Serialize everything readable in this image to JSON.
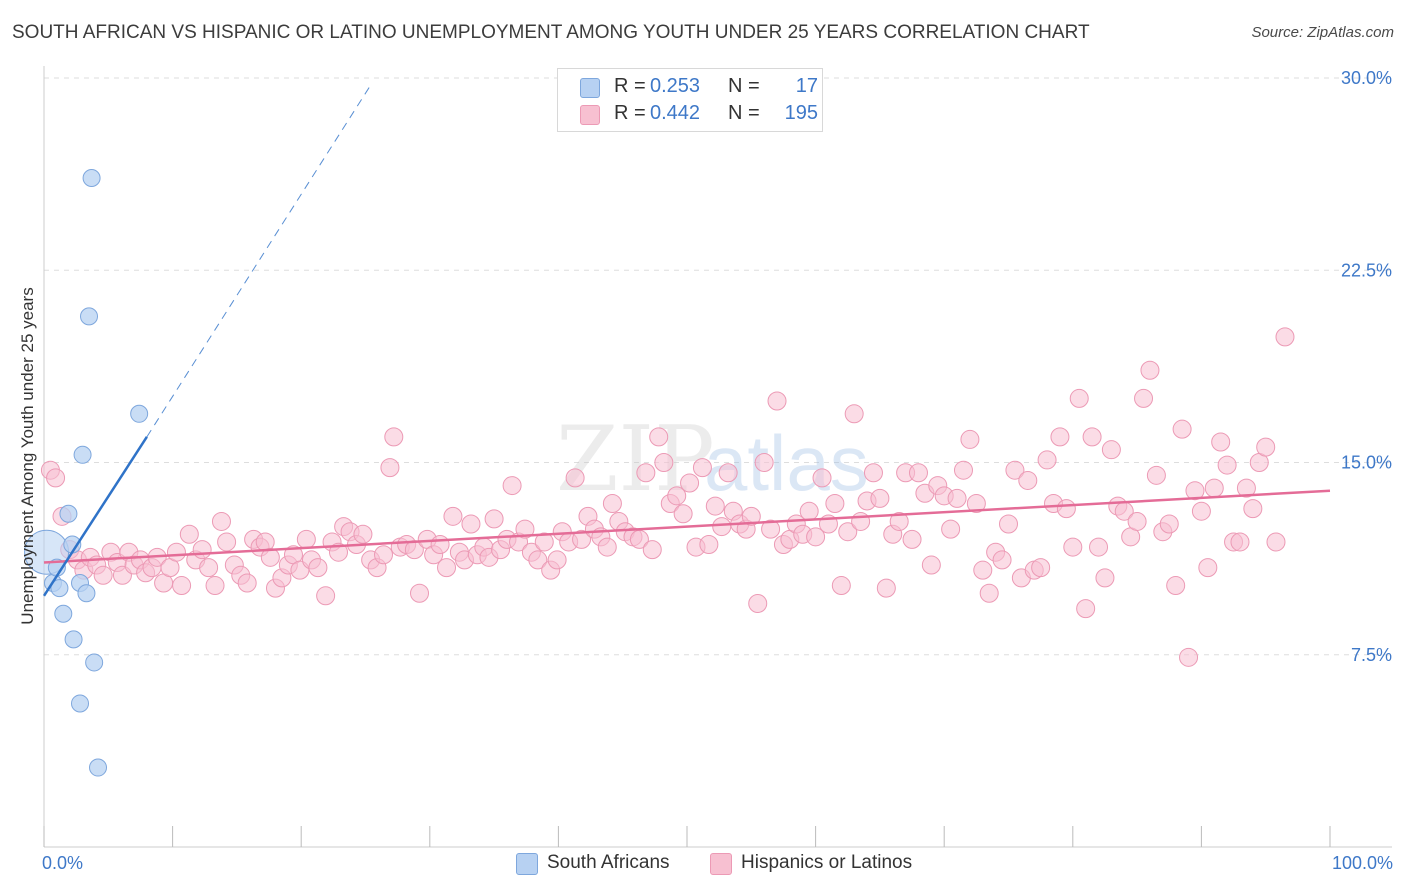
{
  "title": "SOUTH AFRICAN VS HISPANIC OR LATINO UNEMPLOYMENT AMONG YOUTH UNDER 25 YEARS CORRELATION CHART",
  "source": "Source: ZipAtlas.com",
  "watermark": {
    "zip": "ZIP",
    "atlas": "atlas"
  },
  "legend": {
    "rows": [
      {
        "r_label": "R =",
        "r_value": "0.253",
        "n_label": "N =",
        "n_value": "17"
      },
      {
        "r_label": "R =",
        "r_value": "0.442",
        "n_label": "N =",
        "n_value": "195"
      }
    ]
  },
  "bottom_legend": [
    "South Africans",
    "Hispanics or Latinos"
  ],
  "colors": {
    "blue_fill": "#b7d1f2",
    "blue_stroke": "#7ea7dd",
    "blue_line": "#2f73c8",
    "pink_fill": "#f7c0d1",
    "pink_stroke": "#ec9ab5",
    "pink_line": "#e46c97",
    "tick_text": "#3e78c8",
    "grid": "#dddddd"
  },
  "chart_data": {
    "type": "scatter",
    "title": "SOUTH AFRICAN VS HISPANIC OR LATINO UNEMPLOYMENT AMONG YOUTH UNDER 25 YEARS CORRELATION CHART",
    "xlabel": "",
    "ylabel": "Unemployment Among Youth under 25 years",
    "xlim": [
      0,
      100
    ],
    "ylim": [
      0,
      30
    ],
    "x_ticks": [
      "0.0%",
      "100.0%"
    ],
    "y_ticks": [
      {
        "value": 7.5,
        "label": "7.5%"
      },
      {
        "value": 15,
        "label": "15.0%"
      },
      {
        "value": 22.5,
        "label": "22.5%"
      },
      {
        "value": 30,
        "label": "30.0%"
      }
    ],
    "series": [
      {
        "name": "South Africans",
        "R": 0.253,
        "N": 17,
        "points": [
          [
            0.2,
            11.5
          ],
          [
            0.7,
            10.3
          ],
          [
            1.0,
            10.9
          ],
          [
            1.2,
            10.1
          ],
          [
            1.5,
            9.1
          ],
          [
            1.9,
            13.0
          ],
          [
            2.2,
            11.8
          ],
          [
            2.3,
            8.1
          ],
          [
            2.8,
            10.3
          ],
          [
            3.0,
            15.3
          ],
          [
            3.3,
            9.9
          ],
          [
            3.5,
            20.7
          ],
          [
            3.7,
            26.1
          ],
          [
            3.9,
            7.2
          ],
          [
            4.2,
            3.1
          ],
          [
            2.8,
            5.6
          ],
          [
            7.4,
            16.9
          ]
        ],
        "trend_solid": [
          [
            0,
            9.8
          ],
          [
            8.0,
            16.0
          ]
        ],
        "trend_dashed": [
          [
            8.0,
            16.0
          ],
          [
            25.5,
            29.8
          ]
        ]
      },
      {
        "name": "Hispanics or Latinos",
        "R": 0.442,
        "N": 195,
        "trend": [
          [
            0,
            11.1
          ],
          [
            100,
            13.9
          ]
        ],
        "points": [
          [
            0.5,
            14.7
          ],
          [
            0.9,
            14.4
          ],
          [
            1.4,
            12.9
          ],
          [
            2.0,
            11.6
          ],
          [
            2.6,
            11.2
          ],
          [
            3.1,
            10.8
          ],
          [
            3.6,
            11.3
          ],
          [
            4.1,
            11.0
          ],
          [
            4.6,
            10.6
          ],
          [
            5.2,
            11.5
          ],
          [
            5.7,
            11.1
          ],
          [
            6.1,
            10.6
          ],
          [
            6.6,
            11.5
          ],
          [
            7.0,
            11.0
          ],
          [
            7.5,
            11.2
          ],
          [
            7.9,
            10.7
          ],
          [
            8.4,
            10.9
          ],
          [
            8.8,
            11.3
          ],
          [
            9.3,
            10.3
          ],
          [
            9.8,
            10.9
          ],
          [
            10.3,
            11.5
          ],
          [
            10.7,
            10.2
          ],
          [
            11.3,
            12.2
          ],
          [
            11.8,
            11.2
          ],
          [
            12.3,
            11.6
          ],
          [
            12.8,
            10.9
          ],
          [
            13.3,
            10.2
          ],
          [
            13.8,
            12.7
          ],
          [
            14.2,
            11.9
          ],
          [
            14.8,
            11.0
          ],
          [
            15.3,
            10.6
          ],
          [
            15.8,
            10.3
          ],
          [
            16.3,
            12.0
          ],
          [
            16.8,
            11.7
          ],
          [
            17.2,
            11.9
          ],
          [
            17.6,
            11.3
          ],
          [
            18.0,
            10.1
          ],
          [
            18.5,
            10.5
          ],
          [
            19.0,
            11.0
          ],
          [
            19.4,
            11.4
          ],
          [
            19.9,
            10.8
          ],
          [
            20.4,
            12.0
          ],
          [
            20.8,
            11.2
          ],
          [
            21.3,
            10.9
          ],
          [
            21.9,
            9.8
          ],
          [
            22.4,
            11.9
          ],
          [
            22.9,
            11.5
          ],
          [
            23.3,
            12.5
          ],
          [
            23.8,
            12.3
          ],
          [
            24.3,
            11.8
          ],
          [
            24.8,
            12.2
          ],
          [
            25.4,
            11.2
          ],
          [
            25.9,
            10.9
          ],
          [
            26.4,
            11.4
          ],
          [
            26.9,
            14.8
          ],
          [
            27.2,
            16.0
          ],
          [
            27.7,
            11.7
          ],
          [
            28.2,
            11.8
          ],
          [
            28.8,
            11.6
          ],
          [
            29.2,
            9.9
          ],
          [
            29.8,
            12.0
          ],
          [
            30.3,
            11.4
          ],
          [
            30.8,
            11.8
          ],
          [
            31.3,
            10.9
          ],
          [
            31.8,
            12.9
          ],
          [
            32.3,
            11.5
          ],
          [
            32.7,
            11.2
          ],
          [
            33.2,
            12.6
          ],
          [
            33.7,
            11.4
          ],
          [
            34.2,
            11.7
          ],
          [
            34.6,
            11.3
          ],
          [
            35.0,
            12.8
          ],
          [
            35.5,
            11.6
          ],
          [
            36.0,
            12.0
          ],
          [
            36.4,
            14.1
          ],
          [
            36.9,
            11.9
          ],
          [
            37.4,
            12.4
          ],
          [
            37.9,
            11.5
          ],
          [
            38.4,
            11.2
          ],
          [
            38.9,
            11.9
          ],
          [
            39.4,
            10.8
          ],
          [
            39.9,
            11.2
          ],
          [
            40.3,
            12.3
          ],
          [
            40.8,
            11.9
          ],
          [
            41.3,
            14.4
          ],
          [
            41.8,
            12.0
          ],
          [
            42.3,
            12.9
          ],
          [
            42.8,
            12.4
          ],
          [
            43.3,
            12.1
          ],
          [
            43.8,
            11.7
          ],
          [
            44.2,
            13.4
          ],
          [
            44.7,
            12.7
          ],
          [
            45.2,
            12.3
          ],
          [
            45.8,
            12.1
          ],
          [
            46.3,
            12.0
          ],
          [
            46.8,
            14.6
          ],
          [
            47.3,
            11.6
          ],
          [
            47.8,
            16.0
          ],
          [
            48.2,
            15.0
          ],
          [
            48.7,
            13.4
          ],
          [
            49.2,
            13.7
          ],
          [
            49.7,
            13.0
          ],
          [
            50.2,
            14.2
          ],
          [
            50.7,
            11.7
          ],
          [
            51.2,
            14.8
          ],
          [
            51.7,
            11.8
          ],
          [
            52.2,
            13.3
          ],
          [
            52.7,
            12.5
          ],
          [
            53.2,
            14.6
          ],
          [
            53.6,
            13.1
          ],
          [
            54.1,
            12.6
          ],
          [
            54.6,
            12.4
          ],
          [
            55.0,
            12.9
          ],
          [
            55.5,
            9.5
          ],
          [
            56.0,
            15.0
          ],
          [
            56.5,
            12.4
          ],
          [
            57.0,
            17.4
          ],
          [
            57.5,
            11.8
          ],
          [
            58.0,
            12.0
          ],
          [
            58.5,
            12.6
          ],
          [
            59.0,
            12.2
          ],
          [
            59.5,
            13.1
          ],
          [
            60.0,
            12.1
          ],
          [
            60.5,
            14.4
          ],
          [
            61.0,
            12.6
          ],
          [
            61.5,
            13.4
          ],
          [
            62.0,
            10.2
          ],
          [
            62.5,
            12.3
          ],
          [
            63.0,
            16.9
          ],
          [
            63.5,
            12.7
          ],
          [
            64.0,
            13.5
          ],
          [
            64.5,
            14.6
          ],
          [
            65.0,
            13.6
          ],
          [
            65.5,
            10.1
          ],
          [
            66.0,
            12.2
          ],
          [
            66.5,
            12.7
          ],
          [
            67.0,
            14.6
          ],
          [
            67.5,
            12.0
          ],
          [
            68.0,
            14.6
          ],
          [
            68.5,
            13.8
          ],
          [
            69.0,
            11.0
          ],
          [
            69.5,
            14.1
          ],
          [
            70.0,
            13.7
          ],
          [
            70.5,
            12.4
          ],
          [
            71.0,
            13.6
          ],
          [
            71.5,
            14.7
          ],
          [
            72.0,
            15.9
          ],
          [
            72.5,
            13.4
          ],
          [
            73.0,
            10.8
          ],
          [
            73.5,
            9.9
          ],
          [
            74.0,
            11.5
          ],
          [
            74.5,
            11.2
          ],
          [
            75.0,
            12.6
          ],
          [
            75.5,
            14.7
          ],
          [
            76.0,
            10.5
          ],
          [
            76.5,
            14.3
          ],
          [
            77.0,
            10.8
          ],
          [
            77.5,
            10.9
          ],
          [
            78.0,
            15.1
          ],
          [
            78.5,
            13.4
          ],
          [
            79.0,
            16.0
          ],
          [
            79.5,
            13.2
          ],
          [
            80.0,
            11.7
          ],
          [
            80.5,
            17.5
          ],
          [
            81.0,
            9.3
          ],
          [
            81.5,
            16.0
          ],
          [
            82.0,
            11.7
          ],
          [
            82.5,
            10.5
          ],
          [
            83.0,
            15.5
          ],
          [
            83.5,
            13.3
          ],
          [
            84.0,
            13.1
          ],
          [
            84.5,
            12.1
          ],
          [
            85.0,
            12.7
          ],
          [
            85.5,
            17.5
          ],
          [
            86.0,
            18.6
          ],
          [
            86.5,
            14.5
          ],
          [
            87.0,
            12.3
          ],
          [
            87.5,
            12.6
          ],
          [
            88.0,
            10.2
          ],
          [
            88.5,
            16.3
          ],
          [
            89.0,
            7.4
          ],
          [
            89.5,
            13.9
          ],
          [
            90.0,
            13.1
          ],
          [
            90.5,
            10.9
          ],
          [
            91.0,
            14.0
          ],
          [
            91.5,
            15.8
          ],
          [
            92.0,
            14.9
          ],
          [
            92.5,
            11.9
          ],
          [
            93.0,
            11.9
          ],
          [
            93.5,
            14.0
          ],
          [
            94.0,
            13.2
          ],
          [
            94.5,
            15.0
          ],
          [
            95.0,
            15.6
          ],
          [
            95.8,
            11.9
          ],
          [
            96.5,
            19.9
          ]
        ]
      }
    ]
  }
}
